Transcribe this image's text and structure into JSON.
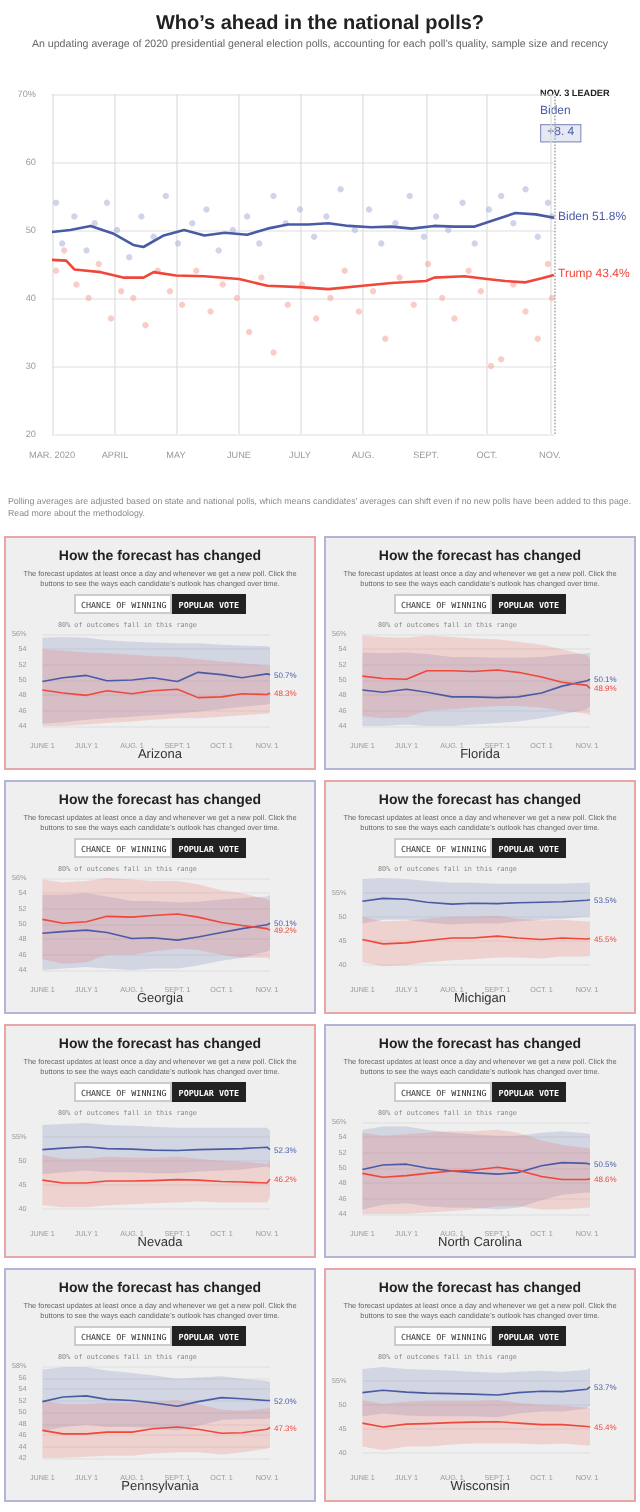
{
  "chart_data": [
    {
      "type": "line",
      "title": "Who’s ahead in the national polls?",
      "subtitle": "An updating average of 2020 presidential general election polls, accounting for each poll’s quality, sample size and recency",
      "xlim": [
        "2020-03-01",
        "2020-11-03"
      ],
      "xticks": [
        {
          "value": "2020-03-01",
          "label": "MAR. 2020"
        },
        {
          "value": "2020-04-01",
          "label": "APRIL"
        },
        {
          "value": "2020-05-01",
          "label": "MAY"
        },
        {
          "value": "2020-06-01",
          "label": "JUNE"
        },
        {
          "value": "2020-07-01",
          "label": "JULY"
        },
        {
          "value": "2020-08-01",
          "label": "AUG."
        },
        {
          "value": "2020-09-01",
          "label": "SEPT."
        },
        {
          "value": "2020-10-01",
          "label": "OCT."
        },
        {
          "value": "2020-11-01",
          "label": "NOV."
        }
      ],
      "ylim": [
        20,
        70
      ],
      "yticks": [
        20,
        30,
        40,
        50,
        60,
        {
          "value": 70,
          "label": "70%"
        }
      ],
      "grid": true,
      "ref_lines": [
        {
          "axis": "x",
          "value": "2020-11-03",
          "color": "#aaaaaa",
          "line_style": "dotted"
        }
      ],
      "annotations": [
        "NOV. 3 LEADER",
        "Biden",
        "+8. 4",
        "Polling averages are adjusted based on state and national polls, which means candidates’ averages can shift even if no new polls have been added to this page. Read more about the methodology."
      ],
      "series": [
        {
          "type": "scatter",
          "color": "#aeb8dc",
          "x": [
            "2020-03-03",
            "2020-03-06",
            "2020-03-12",
            "2020-03-18",
            "2020-03-22",
            "2020-03-28",
            "2020-04-02",
            "2020-04-08",
            "2020-04-14",
            "2020-04-20",
            "2020-04-26",
            "2020-05-02",
            "2020-05-09",
            "2020-05-16",
            "2020-05-22",
            "2020-05-29",
            "2020-06-05",
            "2020-06-11",
            "2020-06-18",
            "2020-06-24",
            "2020-07-01",
            "2020-07-08",
            "2020-07-14",
            "2020-07-21",
            "2020-07-28",
            "2020-08-04",
            "2020-08-10",
            "2020-08-17",
            "2020-08-24",
            "2020-08-31",
            "2020-09-06",
            "2020-09-12",
            "2020-09-19",
            "2020-09-25",
            "2020-10-02",
            "2020-10-08",
            "2020-10-14",
            "2020-10-20",
            "2020-10-26",
            "2020-10-31",
            "2020-11-02"
          ],
          "values": [
            54,
            48,
            52,
            47,
            51,
            54,
            50,
            46,
            52,
            49,
            55,
            48,
            51,
            53,
            47,
            50,
            52,
            48,
            55,
            51,
            53,
            49,
            52,
            56,
            50,
            53,
            48,
            51,
            55,
            49,
            52,
            50,
            54,
            48,
            53,
            55,
            51,
            56,
            49,
            54,
            52
          ]
        },
        {
          "type": "scatter",
          "color": "#f6aaa3",
          "x": [
            "2020-03-03",
            "2020-03-07",
            "2020-03-13",
            "2020-03-19",
            "2020-03-24",
            "2020-03-30",
            "2020-04-04",
            "2020-04-10",
            "2020-04-16",
            "2020-04-22",
            "2020-04-28",
            "2020-05-04",
            "2020-05-11",
            "2020-05-18",
            "2020-05-24",
            "2020-05-31",
            "2020-06-06",
            "2020-06-12",
            "2020-06-18",
            "2020-06-25",
            "2020-07-02",
            "2020-07-09",
            "2020-07-16",
            "2020-07-23",
            "2020-07-30",
            "2020-08-06",
            "2020-08-12",
            "2020-08-19",
            "2020-08-26",
            "2020-09-02",
            "2020-09-09",
            "2020-09-15",
            "2020-09-22",
            "2020-09-28",
            "2020-10-03",
            "2020-10-08",
            "2020-10-14",
            "2020-10-20",
            "2020-10-26",
            "2020-10-31",
            "2020-11-02"
          ],
          "values": [
            44,
            47,
            42,
            40,
            45,
            37,
            41,
            40,
            36,
            44,
            41,
            39,
            44,
            38,
            42,
            40,
            35,
            43,
            32,
            39,
            42,
            37,
            40,
            44,
            38,
            41,
            34,
            43,
            39,
            45,
            40,
            37,
            44,
            41,
            30,
            31,
            42,
            38,
            34,
            45,
            40
          ]
        },
        {
          "type": "line",
          "name": "Biden",
          "color": "#4a5ba6",
          "x": [
            "2020-03-01",
            "2020-03-10",
            "2020-03-20",
            "2020-03-31",
            "2020-04-10",
            "2020-04-15",
            "2020-04-25",
            "2020-05-05",
            "2020-05-15",
            "2020-05-25",
            "2020-06-05",
            "2020-06-15",
            "2020-06-25",
            "2020-07-05",
            "2020-07-15",
            "2020-07-25",
            "2020-08-05",
            "2020-08-15",
            "2020-08-25",
            "2020-09-05",
            "2020-09-15",
            "2020-09-25",
            "2020-10-05",
            "2020-10-15",
            "2020-10-25",
            "2020-11-03"
          ],
          "values": [
            49.7,
            50.0,
            50.6,
            49.5,
            47.8,
            47.5,
            49.2,
            50.0,
            49.2,
            49.6,
            49.3,
            50.2,
            50.8,
            50.8,
            51.0,
            50.6,
            50.4,
            50.5,
            50.2,
            50.6,
            50.5,
            50.5,
            51.5,
            52.5,
            52.3,
            51.8
          ],
          "value_labels": [
            null,
            null,
            null,
            null,
            null,
            null,
            null,
            null,
            null,
            null,
            null,
            null,
            null,
            null,
            null,
            null,
            null,
            null,
            null,
            null,
            null,
            null,
            null,
            null,
            null,
            "51.8%"
          ]
        },
        {
          "type": "line",
          "name": "Trump",
          "color": "#f0473a",
          "x": [
            "2020-03-01",
            "2020-03-08",
            "2020-03-12",
            "2020-03-25",
            "2020-04-05",
            "2020-04-15",
            "2020-04-20",
            "2020-05-01",
            "2020-05-15",
            "2020-06-01",
            "2020-06-15",
            "2020-07-01",
            "2020-07-15",
            "2020-08-01",
            "2020-08-15",
            "2020-09-01",
            "2020-09-05",
            "2020-09-20",
            "2020-10-01",
            "2020-10-10",
            "2020-10-20",
            "2020-10-28",
            "2020-11-03"
          ],
          "values": [
            45.6,
            45.5,
            44.2,
            43.8,
            43.0,
            43.0,
            43.8,
            43.3,
            43.2,
            42.8,
            41.8,
            41.6,
            41.3,
            41.8,
            42.2,
            42.5,
            43.0,
            43.2,
            42.8,
            42.5,
            42.3,
            42.9,
            43.4
          ],
          "value_labels": [
            null,
            null,
            null,
            null,
            null,
            null,
            null,
            null,
            null,
            null,
            null,
            null,
            null,
            null,
            null,
            null,
            null,
            null,
            null,
            null,
            null,
            null,
            "43.4%"
          ]
        }
      ]
    },
    {
      "type": "line",
      "title": "How the forecast has changed",
      "subtitle": "The forecast updates at least once a day and whenever we get a new poll. Click the buttons to see the ways each candidate’s outlook has changed over time.",
      "xlabel": "Arizona",
      "annotations": [
        "CHANCE OF WINNING",
        "POPULAR VOTE",
        "80% of outcomes fall in this range"
      ],
      "x": [
        "2020-06-01",
        "2020-06-15",
        "2020-07-01",
        "2020-07-15",
        "2020-08-01",
        "2020-08-15",
        "2020-09-01",
        "2020-09-15",
        "2020-10-01",
        "2020-10-15",
        "2020-11-01",
        "2020-11-03"
      ],
      "xlim": [
        "2020-06-01",
        "2020-11-03"
      ],
      "xticks": [
        {
          "value": "2020-06-01",
          "label": "JUNE 1"
        },
        {
          "value": "2020-07-01",
          "label": "JULY 1"
        },
        {
          "value": "2020-08-01",
          "label": "AUG. 1"
        },
        {
          "value": "2020-09-01",
          "label": "SEPT. 1"
        },
        {
          "value": "2020-10-01",
          "label": "OCT. 1"
        },
        {
          "value": "2020-11-01",
          "label": "NOV. 1"
        }
      ],
      "ylim": [
        44,
        56
      ],
      "yticks": [
        44,
        46,
        48,
        50,
        52,
        54,
        {
          "value": 56,
          "label": "56%"
        }
      ],
      "grid": "y",
      "series": [
        {
          "color": "#4a5ba6",
          "values": [
            49.8,
            50.3,
            50.6,
            49.9,
            50.0,
            50.3,
            49.8,
            51.0,
            50.7,
            50.3,
            50.8,
            50.7
          ],
          "lower": [
            44.3,
            44.5,
            44.8,
            45.0,
            45.2,
            45.4,
            45.6,
            45.9,
            46.2,
            46.5,
            46.8,
            47.0
          ],
          "upper": [
            55.5,
            55.6,
            55.5,
            55.2,
            55.0,
            54.9,
            54.8,
            54.8,
            54.6,
            54.5,
            54.4,
            54.3
          ],
          "value_labels": [
            null,
            null,
            null,
            null,
            null,
            null,
            null,
            null,
            null,
            null,
            null,
            "50.7%"
          ]
        },
        {
          "color": "#f0473a",
          "values": [
            48.7,
            48.3,
            48.0,
            48.6,
            48.2,
            48.6,
            48.8,
            47.7,
            47.8,
            48.2,
            48.1,
            48.3
          ],
          "lower": [
            44.0,
            44.0,
            44.2,
            44.4,
            44.6,
            44.8,
            45.0,
            45.0,
            45.2,
            45.4,
            45.6,
            45.7
          ],
          "upper": [
            54.0,
            53.8,
            53.6,
            53.5,
            53.3,
            53.1,
            53.0,
            52.7,
            52.4,
            52.2,
            51.9,
            51.8
          ],
          "value_labels": [
            null,
            null,
            null,
            null,
            null,
            null,
            null,
            null,
            null,
            null,
            null,
            "48.3%"
          ]
        }
      ]
    },
    {
      "type": "line",
      "title": "How the forecast has changed",
      "subtitle": "The forecast updates at least once a day and whenever we get a new poll. Click the buttons to see the ways each candidate’s outlook has changed over time.",
      "xlabel": "Florida",
      "annotations": [
        "CHANCE OF WINNING",
        "POPULAR VOTE",
        "80% of outcomes fall in this range"
      ],
      "x": [
        "2020-06-01",
        "2020-06-15",
        "2020-07-01",
        "2020-07-15",
        "2020-08-01",
        "2020-08-15",
        "2020-09-01",
        "2020-09-15",
        "2020-10-01",
        "2020-10-15",
        "2020-11-01",
        "2020-11-03"
      ],
      "xlim": [
        "2020-06-01",
        "2020-11-03"
      ],
      "xticks": [
        {
          "value": "2020-06-01",
          "label": "JUNE 1"
        },
        {
          "value": "2020-07-01",
          "label": "JULY 1"
        },
        {
          "value": "2020-08-01",
          "label": "AUG. 1"
        },
        {
          "value": "2020-09-01",
          "label": "SEPT. 1"
        },
        {
          "value": "2020-10-01",
          "label": "OCT. 1"
        },
        {
          "value": "2020-11-01",
          "label": "NOV. 1"
        }
      ],
      "ylim": [
        44,
        56
      ],
      "yticks": [
        44,
        46,
        48,
        50,
        52,
        54,
        {
          "value": 56,
          "label": "56%"
        }
      ],
      "grid": "y",
      "series": [
        {
          "color": "#4a5ba6",
          "values": [
            48.7,
            48.4,
            48.8,
            48.4,
            47.8,
            47.8,
            47.7,
            47.8,
            48.3,
            49.2,
            49.9,
            50.1
          ],
          "lower": [
            44.0,
            44.0,
            44.2,
            44.0,
            44.0,
            44.2,
            44.4,
            44.6,
            45.0,
            45.5,
            46.2,
            46.5
          ],
          "upper": [
            53.6,
            53.5,
            53.6,
            53.4,
            53.0,
            53.0,
            52.9,
            52.9,
            53.0,
            53.3,
            53.5,
            53.6
          ],
          "value_labels": [
            null,
            null,
            null,
            null,
            null,
            null,
            null,
            null,
            null,
            null,
            null,
            "50.1%"
          ]
        },
        {
          "color": "#f0473a",
          "values": [
            50.5,
            50.2,
            50.1,
            51.2,
            51.2,
            51.1,
            51.3,
            51.0,
            50.4,
            49.7,
            49.3,
            48.9
          ],
          "lower": [
            45.3,
            45.0,
            45.1,
            46.0,
            46.2,
            46.4,
            46.6,
            46.6,
            46.4,
            46.0,
            45.6,
            45.4
          ],
          "upper": [
            55.8,
            55.6,
            55.5,
            55.8,
            55.6,
            55.4,
            55.3,
            55.0,
            54.6,
            54.0,
            53.2,
            52.8
          ],
          "value_labels": [
            null,
            null,
            null,
            null,
            null,
            null,
            null,
            null,
            null,
            null,
            null,
            "48.9%"
          ]
        }
      ]
    },
    {
      "type": "line",
      "title": "How the forecast has changed",
      "subtitle": "The forecast updates at least once a day and whenever we get a new poll. Click the buttons to see the ways each candidate’s outlook has changed over time.",
      "xlabel": "Georgia",
      "annotations": [
        "CHANCE OF WINNING",
        "POPULAR VOTE",
        "80% of outcomes fall in this range"
      ],
      "x": [
        "2020-06-01",
        "2020-06-15",
        "2020-07-01",
        "2020-07-15",
        "2020-08-01",
        "2020-08-15",
        "2020-09-01",
        "2020-09-15",
        "2020-10-01",
        "2020-10-15",
        "2020-11-01",
        "2020-11-03"
      ],
      "xlim": [
        "2020-06-01",
        "2020-11-03"
      ],
      "xticks": [
        {
          "value": "2020-06-01",
          "label": "JUNE 1"
        },
        {
          "value": "2020-07-01",
          "label": "JULY 1"
        },
        {
          "value": "2020-08-01",
          "label": "AUG. 1"
        },
        {
          "value": "2020-09-01",
          "label": "SEPT. 1"
        },
        {
          "value": "2020-10-01",
          "label": "OCT. 1"
        },
        {
          "value": "2020-11-01",
          "label": "NOV. 1"
        }
      ],
      "ylim": [
        44,
        56
      ],
      "yticks": [
        44,
        46,
        48,
        50,
        52,
        54,
        {
          "value": 56,
          "label": "56%"
        }
      ],
      "grid": "y",
      "series": [
        {
          "color": "#4a5ba6",
          "values": [
            48.8,
            49.0,
            49.2,
            48.9,
            48.1,
            48.2,
            47.9,
            48.3,
            48.9,
            49.4,
            49.9,
            50.1
          ],
          "lower": [
            44.0,
            44.2,
            44.4,
            44.2,
            44.0,
            44.2,
            44.2,
            44.6,
            45.2,
            45.6,
            46.4,
            46.6
          ],
          "upper": [
            53.8,
            53.8,
            54.0,
            53.6,
            53.0,
            53.0,
            52.8,
            52.9,
            53.2,
            53.4,
            53.6,
            53.8
          ],
          "value_labels": [
            null,
            null,
            null,
            null,
            null,
            null,
            null,
            null,
            null,
            null,
            null,
            "50.1%"
          ]
        },
        {
          "color": "#f0473a",
          "values": [
            50.6,
            50.1,
            50.3,
            51.0,
            50.9,
            51.1,
            51.3,
            50.9,
            50.2,
            49.8,
            49.4,
            49.2
          ],
          "lower": [
            45.4,
            44.8,
            45.0,
            46.0,
            46.0,
            46.4,
            46.8,
            46.6,
            46.0,
            45.6,
            45.6,
            45.4
          ],
          "upper": [
            55.8,
            55.4,
            55.6,
            56.0,
            55.8,
            55.6,
            55.6,
            55.2,
            54.4,
            54.0,
            53.2,
            53.0
          ],
          "value_labels": [
            null,
            null,
            null,
            null,
            null,
            null,
            null,
            null,
            null,
            null,
            null,
            "49.2%"
          ]
        }
      ]
    },
    {
      "type": "line",
      "title": "How the forecast has changed",
      "subtitle": "The forecast updates at least once a day and whenever we get a new poll. Click the buttons to see the ways each candidate’s outlook has changed over time.",
      "xlabel": "Michigan",
      "annotations": [
        "CHANCE OF WINNING",
        "POPULAR VOTE",
        "80% of outcomes fall in this range"
      ],
      "x": [
        "2020-06-01",
        "2020-06-15",
        "2020-07-01",
        "2020-07-15",
        "2020-08-01",
        "2020-08-15",
        "2020-09-01",
        "2020-09-15",
        "2020-10-01",
        "2020-10-15",
        "2020-11-01",
        "2020-11-03"
      ],
      "xlim": [
        "2020-06-01",
        "2020-11-03"
      ],
      "xticks": [
        {
          "value": "2020-06-01",
          "label": "JUNE 1"
        },
        {
          "value": "2020-07-01",
          "label": "JULY 1"
        },
        {
          "value": "2020-08-01",
          "label": "AUG. 1"
        },
        {
          "value": "2020-09-01",
          "label": "SEPT. 1"
        },
        {
          "value": "2020-10-01",
          "label": "OCT. 1"
        },
        {
          "value": "2020-11-01",
          "label": "NOV. 1"
        }
      ],
      "ylim": [
        39,
        58
      ],
      "yticks": [
        40,
        45,
        50,
        {
          "value": 55,
          "label": "55%"
        }
      ],
      "grid": "y",
      "series": [
        {
          "color": "#4a5ba6",
          "values": [
            53.2,
            53.8,
            53.6,
            53.0,
            52.6,
            52.8,
            52.7,
            52.9,
            53.0,
            53.1,
            53.4,
            53.5
          ],
          "lower": [
            48.6,
            49.4,
            49.4,
            48.8,
            48.4,
            48.6,
            48.6,
            49.0,
            49.4,
            49.6,
            50.0,
            50.1
          ],
          "upper": [
            57.8,
            58.0,
            57.8,
            57.4,
            57.0,
            57.0,
            56.8,
            56.8,
            56.8,
            56.8,
            57.0,
            57.0
          ],
          "value_labels": [
            null,
            null,
            null,
            null,
            null,
            null,
            null,
            null,
            null,
            null,
            null,
            "53.5%"
          ]
        },
        {
          "color": "#f0473a",
          "values": [
            45.3,
            44.4,
            44.6,
            45.1,
            45.6,
            45.6,
            46.0,
            45.6,
            45.3,
            45.6,
            45.4,
            45.5
          ],
          "lower": [
            40.6,
            39.8,
            40.0,
            40.6,
            41.0,
            41.2,
            41.6,
            41.6,
            41.4,
            41.8,
            41.8,
            42.0
          ],
          "upper": [
            50.0,
            49.0,
            49.2,
            49.6,
            50.0,
            50.0,
            50.2,
            49.6,
            49.2,
            49.4,
            49.0,
            49.0
          ],
          "value_labels": [
            null,
            null,
            null,
            null,
            null,
            null,
            null,
            null,
            null,
            null,
            null,
            "45.5%"
          ]
        }
      ]
    },
    {
      "type": "line",
      "title": "How the forecast has changed",
      "subtitle": "The forecast updates at least once a day and whenever we get a new poll. Click the buttons to see the ways each candidate’s outlook has changed over time.",
      "xlabel": "Nevada",
      "annotations": [
        "CHANCE OF WINNING",
        "POPULAR VOTE",
        "80% of outcomes fall in this range"
      ],
      "x": [
        "2020-06-01",
        "2020-06-15",
        "2020-07-01",
        "2020-07-15",
        "2020-08-01",
        "2020-08-15",
        "2020-09-01",
        "2020-09-15",
        "2020-10-01",
        "2020-10-15",
        "2020-11-01",
        "2020-11-03"
      ],
      "xlim": [
        "2020-06-01",
        "2020-11-03"
      ],
      "xticks": [
        {
          "value": "2020-06-01",
          "label": "JUNE 1"
        },
        {
          "value": "2020-07-01",
          "label": "JULY 1"
        },
        {
          "value": "2020-08-01",
          "label": "AUG. 1"
        },
        {
          "value": "2020-09-01",
          "label": "SEPT. 1"
        },
        {
          "value": "2020-10-01",
          "label": "OCT. 1"
        },
        {
          "value": "2020-11-01",
          "label": "NOV. 1"
        }
      ],
      "ylim": [
        39,
        58
      ],
      "yticks": [
        40,
        45,
        50,
        {
          "value": 55,
          "label": "55%"
        }
      ],
      "grid": "y",
      "series": [
        {
          "color": "#4a5ba6",
          "values": [
            52.3,
            52.6,
            52.9,
            52.5,
            52.4,
            52.2,
            52.1,
            52.3,
            52.4,
            52.5,
            52.8,
            52.3
          ],
          "lower": [
            47.2,
            47.6,
            48.0,
            47.6,
            47.6,
            47.4,
            47.4,
            47.8,
            48.0,
            48.2,
            48.8,
            48.4
          ],
          "upper": [
            57.4,
            57.6,
            57.8,
            57.4,
            57.2,
            57.0,
            56.8,
            56.8,
            56.8,
            56.8,
            56.8,
            56.2
          ],
          "value_labels": [
            null,
            null,
            null,
            null,
            null,
            null,
            null,
            null,
            null,
            null,
            null,
            "52.3%"
          ]
        },
        {
          "color": "#f0473a",
          "values": [
            46.0,
            45.4,
            45.4,
            45.8,
            45.8,
            45.9,
            46.1,
            46.0,
            45.7,
            45.6,
            45.4,
            46.2
          ],
          "lower": [
            40.8,
            40.4,
            40.4,
            40.8,
            41.0,
            41.2,
            41.4,
            41.6,
            41.4,
            41.4,
            41.4,
            42.4
          ],
          "upper": [
            51.2,
            50.4,
            50.4,
            50.8,
            50.6,
            50.6,
            50.8,
            50.4,
            50.0,
            49.8,
            49.4,
            50.0
          ],
          "value_labels": [
            null,
            null,
            null,
            null,
            null,
            null,
            null,
            null,
            null,
            null,
            null,
            "46.2%"
          ]
        }
      ]
    },
    {
      "type": "line",
      "title": "How the forecast has changed",
      "subtitle": "The forecast updates at least once a day and whenever we get a new poll. Click the buttons to see the ways each candidate’s outlook has changed over time.",
      "xlabel": "North Carolina",
      "annotations": [
        "CHANCE OF WINNING",
        "POPULAR VOTE",
        "80% of outcomes fall in this range"
      ],
      "x": [
        "2020-06-01",
        "2020-06-15",
        "2020-07-01",
        "2020-07-15",
        "2020-08-01",
        "2020-08-15",
        "2020-09-01",
        "2020-09-15",
        "2020-10-01",
        "2020-10-15",
        "2020-11-01",
        "2020-11-03"
      ],
      "xlim": [
        "2020-06-01",
        "2020-11-03"
      ],
      "xticks": [
        {
          "value": "2020-06-01",
          "label": "JUNE 1"
        },
        {
          "value": "2020-07-01",
          "label": "JULY 1"
        },
        {
          "value": "2020-08-01",
          "label": "AUG. 1"
        },
        {
          "value": "2020-09-01",
          "label": "SEPT. 1"
        },
        {
          "value": "2020-10-01",
          "label": "OCT. 1"
        },
        {
          "value": "2020-11-01",
          "label": "NOV. 1"
        }
      ],
      "ylim": [
        44,
        56
      ],
      "yticks": [
        44,
        46,
        48,
        50,
        52,
        54,
        {
          "value": 56,
          "label": "56%"
        }
      ],
      "grid": "y",
      "series": [
        {
          "color": "#4a5ba6",
          "values": [
            49.8,
            50.4,
            50.5,
            50.0,
            49.6,
            49.4,
            49.2,
            49.4,
            50.3,
            50.7,
            50.6,
            50.5
          ],
          "lower": [
            44.6,
            45.2,
            45.4,
            45.0,
            44.8,
            44.8,
            44.6,
            44.8,
            45.8,
            46.5,
            46.8,
            46.8
          ],
          "upper": [
            55.0,
            55.4,
            55.4,
            55.0,
            54.6,
            54.4,
            54.2,
            54.2,
            54.6,
            54.8,
            54.5,
            54.4
          ],
          "value_labels": [
            null,
            null,
            null,
            null,
            null,
            null,
            null,
            null,
            null,
            null,
            null,
            "50.5%"
          ]
        },
        {
          "color": "#f0473a",
          "values": [
            49.3,
            48.8,
            49.0,
            49.3,
            49.6,
            49.7,
            50.1,
            49.7,
            48.9,
            48.5,
            48.5,
            48.6
          ],
          "lower": [
            44.0,
            44.0,
            44.0,
            44.2,
            44.4,
            44.6,
            45.0,
            45.0,
            44.6,
            44.6,
            44.8,
            44.8
          ],
          "upper": [
            54.6,
            54.2,
            54.4,
            54.6,
            54.8,
            54.8,
            55.0,
            54.6,
            53.6,
            53.0,
            52.6,
            52.5
          ],
          "value_labels": [
            null,
            null,
            null,
            null,
            null,
            null,
            null,
            null,
            null,
            null,
            null,
            "48.6%"
          ]
        }
      ]
    },
    {
      "type": "line",
      "title": "How the forecast has changed",
      "subtitle": "The forecast updates at least once a day and whenever we get a new poll. Click the buttons to see the ways each candidate’s outlook has changed over time.",
      "xlabel": "Pennsylvania",
      "annotations": [
        "CHANCE OF WINNING",
        "POPULAR VOTE",
        "80% of outcomes fall in this range"
      ],
      "x": [
        "2020-06-01",
        "2020-06-15",
        "2020-07-01",
        "2020-07-15",
        "2020-08-01",
        "2020-08-15",
        "2020-09-01",
        "2020-09-15",
        "2020-10-01",
        "2020-10-15",
        "2020-11-01",
        "2020-11-03"
      ],
      "xlim": [
        "2020-06-01",
        "2020-11-03"
      ],
      "xticks": [
        {
          "value": "2020-06-01",
          "label": "JUNE 1"
        },
        {
          "value": "2020-07-01",
          "label": "JULY 1"
        },
        {
          "value": "2020-08-01",
          "label": "AUG. 1"
        },
        {
          "value": "2020-09-01",
          "label": "SEPT. 1"
        },
        {
          "value": "2020-10-01",
          "label": "OCT. 1"
        },
        {
          "value": "2020-11-01",
          "label": "NOV. 1"
        }
      ],
      "ylim": [
        42,
        58
      ],
      "yticks": [
        42,
        44,
        46,
        48,
        50,
        52,
        54,
        56,
        {
          "value": 58,
          "label": "58%"
        }
      ],
      "grid": "y",
      "series": [
        {
          "color": "#4a5ba6",
          "values": [
            51.8,
            52.6,
            52.8,
            52.2,
            52.0,
            51.6,
            51.0,
            51.8,
            52.5,
            52.3,
            52.0,
            52.0
          ],
          "lower": [
            46.6,
            47.4,
            47.8,
            47.4,
            47.4,
            47.2,
            46.8,
            47.6,
            48.6,
            48.8,
            48.8,
            48.9
          ],
          "upper": [
            57.4,
            57.8,
            57.8,
            57.2,
            56.8,
            56.4,
            55.8,
            56.0,
            56.2,
            55.8,
            55.4,
            55.2
          ],
          "value_labels": [
            null,
            null,
            null,
            null,
            null,
            null,
            null,
            null,
            null,
            null,
            null,
            "52.0%"
          ]
        },
        {
          "color": "#f0473a",
          "values": [
            46.8,
            46.2,
            46.2,
            46.5,
            46.5,
            47.1,
            47.4,
            47.0,
            46.3,
            46.4,
            47.0,
            47.3
          ],
          "lower": [
            42.0,
            42.0,
            42.2,
            42.4,
            42.4,
            42.8,
            43.0,
            43.0,
            42.6,
            43.0,
            43.6,
            43.9
          ],
          "upper": [
            52.0,
            51.4,
            51.4,
            51.6,
            51.6,
            51.8,
            52.0,
            51.4,
            50.4,
            50.2,
            50.6,
            50.8
          ],
          "value_labels": [
            null,
            null,
            null,
            null,
            null,
            null,
            null,
            null,
            null,
            null,
            null,
            "47.3%"
          ]
        }
      ]
    },
    {
      "type": "line",
      "title": "How the forecast has changed",
      "subtitle": "The forecast updates at least once a day and whenever we get a new poll. Click the buttons to see the ways each candidate’s outlook has changed over time.",
      "xlabel": "Wisconsin",
      "annotations": [
        "CHANCE OF WINNING",
        "POPULAR VOTE",
        "80% of outcomes fall in this range"
      ],
      "x": [
        "2020-06-01",
        "2020-06-15",
        "2020-07-01",
        "2020-07-15",
        "2020-08-01",
        "2020-08-15",
        "2020-09-01",
        "2020-09-15",
        "2020-10-01",
        "2020-10-15",
        "2020-11-01",
        "2020-11-03"
      ],
      "xlim": [
        "2020-06-01",
        "2020-11-03"
      ],
      "xticks": [
        {
          "value": "2020-06-01",
          "label": "JUNE 1"
        },
        {
          "value": "2020-07-01",
          "label": "JULY 1"
        },
        {
          "value": "2020-08-01",
          "label": "AUG. 1"
        },
        {
          "value": "2020-09-01",
          "label": "SEPT. 1"
        },
        {
          "value": "2020-10-01",
          "label": "OCT. 1"
        },
        {
          "value": "2020-11-01",
          "label": "NOV. 1"
        }
      ],
      "ylim": [
        39,
        58
      ],
      "yticks": [
        40,
        45,
        50,
        {
          "value": 55,
          "label": "55%"
        }
      ],
      "grid": "y",
      "series": [
        {
          "color": "#4a5ba6",
          "values": [
            52.5,
            53.0,
            52.6,
            52.4,
            52.3,
            52.2,
            52.0,
            52.5,
            52.8,
            52.7,
            53.2,
            53.7
          ],
          "lower": [
            47.6,
            48.2,
            47.8,
            47.6,
            47.6,
            47.6,
            47.4,
            48.2,
            48.6,
            48.6,
            49.2,
            49.8
          ],
          "upper": [
            57.4,
            57.8,
            57.4,
            57.2,
            57.0,
            56.8,
            56.6,
            56.8,
            57.0,
            56.8,
            57.2,
            57.6
          ],
          "value_labels": [
            null,
            null,
            null,
            null,
            null,
            null,
            null,
            null,
            null,
            null,
            null,
            "53.7%"
          ]
        },
        {
          "color": "#f0473a",
          "values": [
            46.2,
            45.4,
            46.0,
            46.1,
            46.3,
            46.4,
            46.5,
            46.2,
            45.9,
            45.9,
            45.5,
            45.4
          ],
          "lower": [
            41.4,
            40.6,
            41.4,
            41.4,
            41.8,
            42.0,
            42.0,
            42.0,
            41.8,
            42.0,
            41.6,
            41.6
          ],
          "upper": [
            51.0,
            50.2,
            50.6,
            50.8,
            50.8,
            50.8,
            51.0,
            50.4,
            50.0,
            49.8,
            49.4,
            49.2
          ],
          "value_labels": [
            null,
            null,
            null,
            null,
            null,
            null,
            null,
            null,
            null,
            null,
            null,
            "45.4%"
          ]
        }
      ]
    }
  ]
}
